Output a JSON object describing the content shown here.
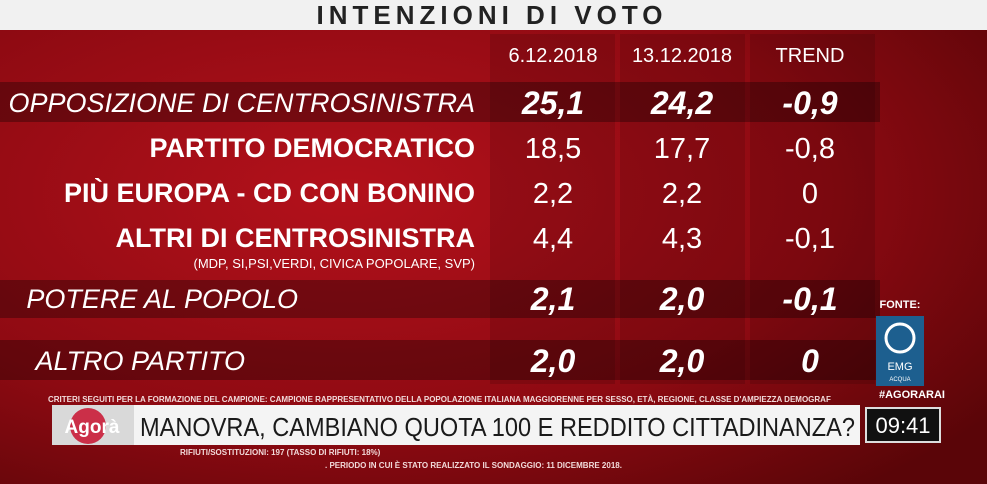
{
  "header": {
    "title": "INTENZIONI DI VOTO"
  },
  "table": {
    "columns": [
      "6.12.2018",
      "13.12.2018",
      "TREND"
    ],
    "rows": [
      {
        "label": "OPPOSIZIONE DI CENTROSINISTRA",
        "values": [
          "25,1",
          "24,2",
          "-0,9"
        ]
      },
      {
        "label": "PARTITO DEMOCRATICO",
        "values": [
          "18,5",
          "17,7",
          "-0,8"
        ]
      },
      {
        "label": "PIÙ EUROPA - CD CON BONINO",
        "values": [
          "2,2",
          "2,2",
          "0"
        ]
      },
      {
        "label": "ALTRI DI CENTROSINISTRA",
        "sublabel": "(MDP, SI,PSI,VERDI, CIVICA POPOLARE, SVP)",
        "values": [
          "4,4",
          "4,3",
          "-0,1"
        ]
      },
      {
        "label": "POTERE AL POPOLO",
        "values": [
          "2,1",
          "2,0",
          "-0,1"
        ]
      },
      {
        "label": "ALTRO PARTITO",
        "values": [
          "2,0",
          "2,0",
          "0"
        ]
      }
    ]
  },
  "source": {
    "label": "FONTE:",
    "logo": "EMG",
    "logo_sub": "ACQUA",
    "hashtag": "#AGORARAI"
  },
  "footnotes": [
    "CRITERI SEGUITI PER LA FORMAZIONE DEL CAMPIONE: CAMPIONE RAPPRESENTATIVO DELLA POPOLAZIONE ITALIANA MAGGIORENNE PER SESSO, ETÀ, REGIONE, CLASSE D'AMPIEZZA DEMOGRAF",
    "RIFIUTI/SOSTITUZIONI: 197 (TASSO DI RIFIUTI: 18%)",
    ". PERIODO IN CUI È STATO REALIZZATO IL SONDAGGIO: 11 DICEMBRE 2018."
  ],
  "ticker": {
    "logo": "Agorà",
    "headline": "MANOVRA, CAMBIANO QUOTA 100 E REDDITO CITTADINANZA?",
    "clock": "09:41"
  }
}
